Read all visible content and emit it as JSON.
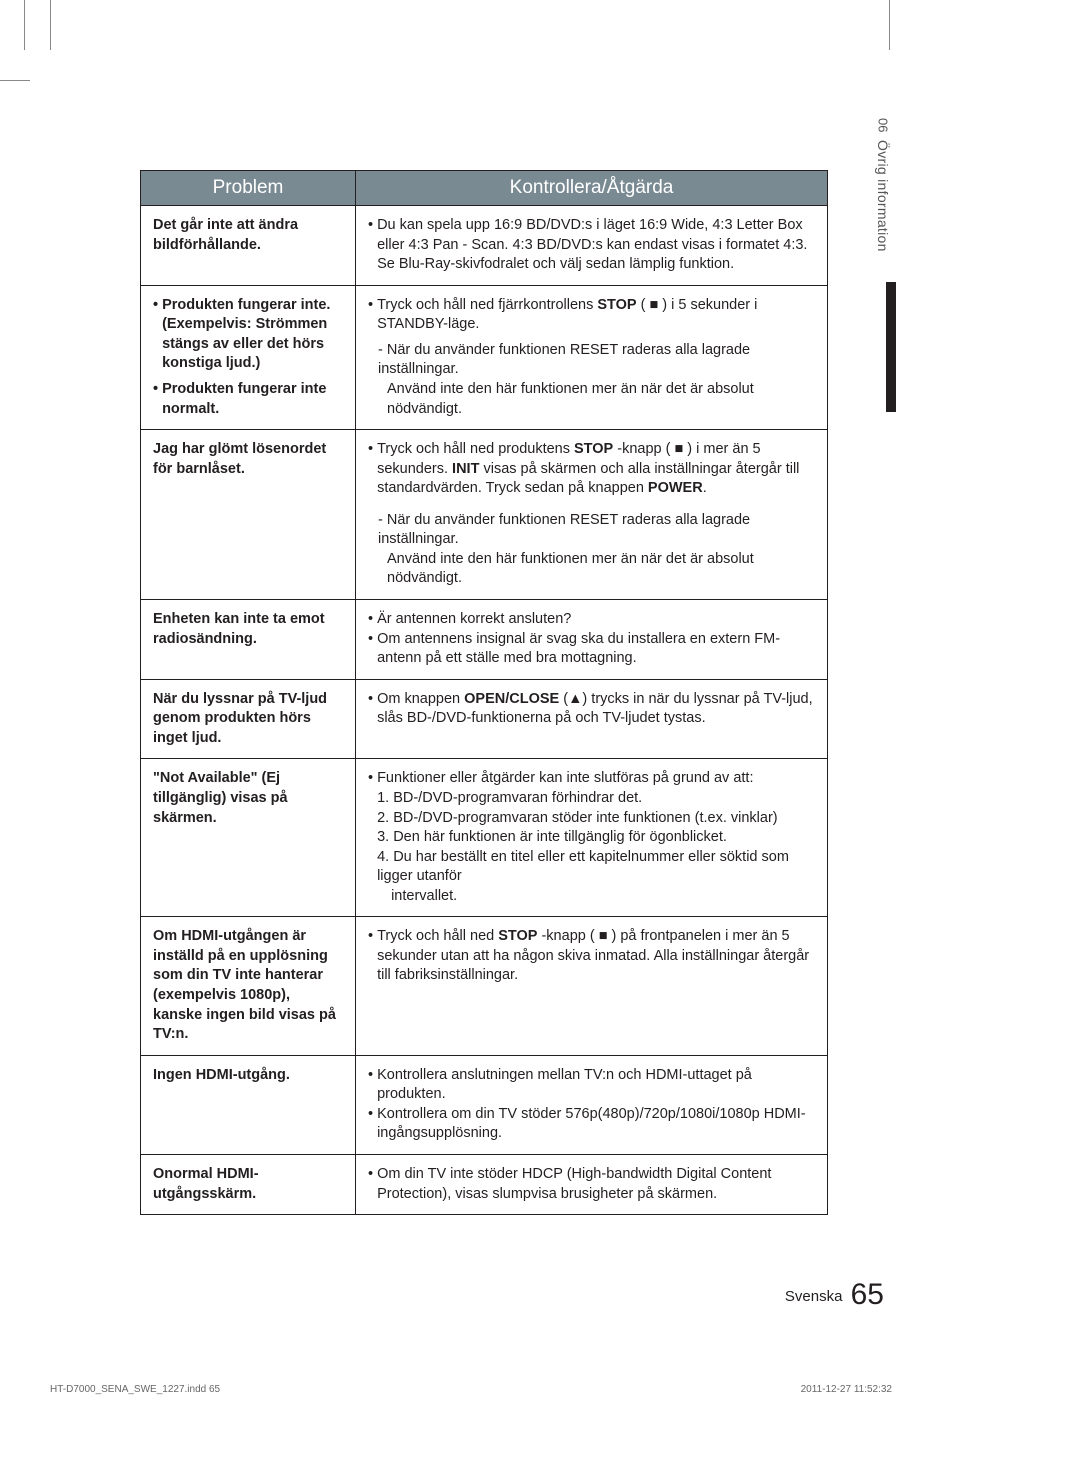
{
  "sideTab": {
    "num": "06",
    "label": "Övrig information"
  },
  "tableHeaders": {
    "problem": "Problem",
    "action": "Kontrollera/Åtgärda"
  },
  "rows": [
    {
      "problemHtml": "Det går inte att ändra bildförhållande.",
      "solutionHtml": "<div class='bullet-block'><span class='bullet-dot'>•</span><span class='bullet-body'>Du kan spela upp 16:9 BD/DVD:s i läget 16:9 Wide, 4:3 Letter Box eller 4:3 Pan - Scan. 4:3 BD/DVD:s kan endast visas i formatet 4:3. Se Blu-Ray-skivfodralet och välj sedan lämplig funktion.</span></div>"
    },
    {
      "problemHtml": "<div class='bullet-block'><span class='bullet-dot'>•</span><span class='bullet-body'>Produkten fungerar inte.<br>(Exempelvis: Strömmen stängs av eller det hörs konstiga ljud.)</span></div><div class='bullet-block' style='margin-top:6px'><span class='bullet-dot'>•</span><span class='bullet-body'>Produkten fungerar inte normalt.</span></div>",
      "solutionHtml": "<div class='bullet-block'><span class='bullet-dot'>•</span><span class='bullet-body'>Tryck och håll ned fjärrkontrollens <b>STOP</b> ( ■ ) i 5 sekunder i STANDBY-läge.</span></div><div style='margin-top:6px' class='sol-indent'>- När du använder funktionen RESET raderas alla lagrade inställningar.<br><span style='padding-left:9px;display:inline-block'>Använd inte den här funktionen mer än när det är absolut nödvändigt.</span></div>"
    },
    {
      "problemHtml": "Jag har glömt lösenordet för barnlåset.",
      "solutionHtml": "<div class='bullet-block'><span class='bullet-dot'>•</span><span class='bullet-body'>Tryck och håll ned produktens <b>STOP</b> -knapp ( ■ ) i mer än 5 sekunders. <b>INIT</b> visas på skärmen och alla inställningar återgår till standardvärden. Tryck sedan på knappen <b>POWER</b>.</span></div><div style='margin-top:12px' class='sol-indent'>- När du använder funktionen RESET raderas alla lagrade inställningar.<br><span style='padding-left:9px;display:inline-block'>Använd inte den här funktionen mer än när det är absolut nödvändigt.</span></div>"
    },
    {
      "problemHtml": "Enheten kan inte ta emot radiosändning.",
      "solutionHtml": "<div class='bullet-block'><span class='bullet-dot'>•</span><span class='bullet-body'>Är antennen korrekt ansluten?</span></div><div class='bullet-block'><span class='bullet-dot'>•</span><span class='bullet-body'>Om antennens insignal är svag ska du installera en extern FM-antenn på ett ställe med bra mottagning.</span></div>"
    },
    {
      "problemHtml": "När du lyssnar på TV-ljud genom produkten hörs inget ljud.",
      "solutionHtml": "<div class='bullet-block'><span class='bullet-dot'>•</span><span class='bullet-body'>Om knappen <b>OPEN/CLOSE</b> (▲) trycks in när du lyssnar på TV-ljud, slås BD-/DVD-funktionerna på och TV-ljudet tystas.</span></div>"
    },
    {
      "problemHtml": "\"Not Available\" (Ej tillgänglig) visas på skärmen.",
      "solutionHtml": "<div class='bullet-block'><span class='bullet-dot'>•</span><span class='bullet-body'>Funktioner eller åtgärder kan inte slutföras på grund av att:<br>1. BD-/DVD-programvaran förhindrar det.<br>2. BD-/DVD-programvaran stöder inte funktionen (t.ex. vinklar)<br>3. Den här funktionen är inte tillgänglig för ögonblicket.<br>4. Du har beställt en titel eller ett kapitelnummer eller söktid som ligger utanför<br><span class='sub-indent'>intervallet.</span></span></div>"
    },
    {
      "problemHtml": "Om HDMI-utgången är inställd på en upplösning som din TV inte hanterar (exempelvis 1080p), kanske ingen bild visas på TV:n.",
      "solutionHtml": "<div class='bullet-block'><span class='bullet-dot'>•</span><span class='bullet-body'>Tryck och håll ned <b>STOP</b> -knapp ( ■ ) på frontpanelen i mer än 5 sekunder utan att ha någon skiva inmatad. Alla inställningar återgår till fabriksinställningar.</span></div>"
    },
    {
      "problemHtml": "Ingen HDMI-utgång.",
      "solutionHtml": "<div class='bullet-block'><span class='bullet-dot'>•</span><span class='bullet-body'>Kontrollera anslutningen mellan TV:n och HDMI-uttaget på produkten.</span></div><div class='bullet-block'><span class='bullet-dot'>•</span><span class='bullet-body'>Kontrollera om din TV stöder 576p(480p)/720p/1080i/1080p HDMI-ingångsupplösning.</span></div>"
    },
    {
      "problemHtml": "Onormal HDMI-utgångsskärm.",
      "solutionHtml": "<div class='bullet-block'><span class='bullet-dot'>•</span><span class='bullet-body'>Om din TV inte stöder HDCP (High-bandwidth Digital Content Protection), visas slumpvisa brusigheter på skärmen.</span></div>"
    }
  ],
  "pageFooter": {
    "lang": "Svenska",
    "num": "65"
  },
  "docFooter": {
    "file": "HT-D7000_SENA_SWE_1227.indd   65",
    "date": "2011-12-27   11:52:32"
  }
}
